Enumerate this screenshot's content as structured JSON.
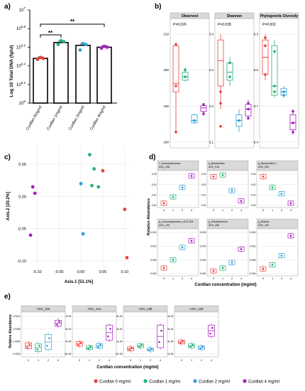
{
  "panel_labels": {
    "a": "a)",
    "b": "b)",
    "c": "c)",
    "d": "d)",
    "e": "e)"
  },
  "colors": {
    "c0": "#e8413c",
    "c1": "#23b077",
    "c2": "#2f9fd8",
    "c4": "#a61ebf"
  },
  "panel_a": {
    "ylabel": "Log 10 Total DNA (fg/ul)",
    "ticks": [
      "10^6",
      "10^6.2",
      "10^6.4",
      "10^6.6",
      "10^6.8",
      "10^7"
    ],
    "categories": [
      "Curdlan 0mg/ml",
      "Curdlan 1mg/ml",
      "Curdlan 2mg/ml",
      "Curdlan 4mg/ml"
    ],
    "sig_short": "**",
    "sig_long": "**"
  },
  "panel_b": {
    "facets": [
      {
        "title": "Observed",
        "p": "P=0.026",
        "ticks": [
          "210",
          "200",
          "190",
          "180"
        ]
      },
      {
        "title": "Shannon",
        "p": "P=0.028",
        "ticks": [
          "3.4",
          "3.3",
          "3.2",
          "3.1"
        ]
      },
      {
        "title": "Phylogenetic Diversity",
        "p": "P=0.002",
        "ticks": [
          "9.3",
          "9.0",
          "8.7",
          "8.4"
        ]
      }
    ]
  },
  "panel_c": {
    "xlabel": "Axis.1 [51.1%]",
    "ylabel": "Axis.2 [20.2%]",
    "xticks": [
      "-0.10",
      "-0.05",
      "0.00",
      "0.05",
      "0.10"
    ],
    "yticks": [
      "0.05",
      "0.00",
      "-0.05",
      "-0.10"
    ]
  },
  "panel_d": {
    "ylabel": "Relative Abundance",
    "xlabel": "Curdlan concentration (mg/ml)",
    "xticks": [
      "0",
      "1",
      "2",
      "4"
    ],
    "facets": [
      {
        "line1": "f_Lachnospiraceae",
        "line2": "ASV_208"
      },
      {
        "line1": "g_Bacteroides",
        "line2": "ASV_016"
      },
      {
        "line1": "g_Bacteroides 1",
        "line2": "ASV_009"
      },
      {
        "line1": "g_Lachnospiraceae_UCG-004",
        "line2": "ASV_130"
      },
      {
        "line1": "g_Solobacterium",
        "line2": "ASV_262"
      },
      {
        "line1": "g_Blautia",
        "line2": "ASV_100"
      }
    ]
  },
  "panel_e": {
    "ylabel": "Relative Abundance",
    "xlabel": "Curdlan concentration (mg/ml)",
    "xticks": [
      "0",
      "1",
      "2",
      "4"
    ],
    "facets": [
      {
        "title": "ASV_116"
      },
      {
        "title": "ASV_131"
      },
      {
        "title": "ASV_138"
      },
      {
        "title": "ASV_140"
      }
    ]
  },
  "legend": {
    "items": [
      "Curdlan 0 mg/ml",
      "Curdlan 1 mg/ml",
      "Curdlan 2 mg/ml",
      "Curdlan 4 mg/ml"
    ]
  },
  "chart_data": [
    {
      "type": "bar",
      "title": "",
      "ylabel": "Log 10 Total DNA (fg/ul)",
      "categories": [
        "Curdlan 0mg/ml",
        "Curdlan 1mg/ml",
        "Curdlan 2mg/ml",
        "Curdlan 4mg/ml"
      ],
      "values": [
        6.48,
        6.65,
        6.62,
        6.6
      ],
      "ylim": [
        6.0,
        7.0
      ],
      "points": [
        [
          6.47,
          6.49,
          6.48
        ],
        [
          6.63,
          6.67,
          6.66
        ],
        [
          6.57,
          6.64,
          6.63
        ],
        [
          6.59,
          6.61,
          6.6
        ]
      ]
    },
    {
      "type": "box",
      "facets": [
        "Observed",
        "Shannon",
        "Phylogenetic Diversity"
      ],
      "series_names": [
        "Curdlan 0 mg/ml",
        "Curdlan 1 mg/ml",
        "Curdlan 2 mg/ml",
        "Curdlan 4 mg/ml"
      ]
    },
    {
      "type": "scatter",
      "xlabel": "Axis.1 [51.1%]",
      "ylabel": "Axis.2 [20.2%]",
      "xlim": [
        -0.12,
        0.11
      ],
      "ylim": [
        -0.11,
        0.08
      ],
      "series": [
        {
          "name": "Curdlan 0 mg/ml",
          "points": [
            [
              0.05,
              0.04
            ],
            [
              0.1,
              -0.02
            ],
            [
              0.105,
              -0.095
            ]
          ]
        },
        {
          "name": "Curdlan 1 mg/ml",
          "points": [
            [
              0.02,
              0.065
            ],
            [
              0.03,
              0.043
            ],
            [
              0.025,
              0.017
            ],
            [
              0.04,
              0.015
            ]
          ]
        },
        {
          "name": "Curdlan 2 mg/ml",
          "points": [
            [
              0.0,
              0.02
            ],
            [
              0.005,
              -0.058
            ]
          ]
        },
        {
          "name": "Curdlan 4 mg/ml",
          "points": [
            [
              -0.11,
              0.015
            ],
            [
              -0.105,
              0.005
            ],
            [
              -0.115,
              -0.06
            ]
          ]
        }
      ]
    }
  ]
}
